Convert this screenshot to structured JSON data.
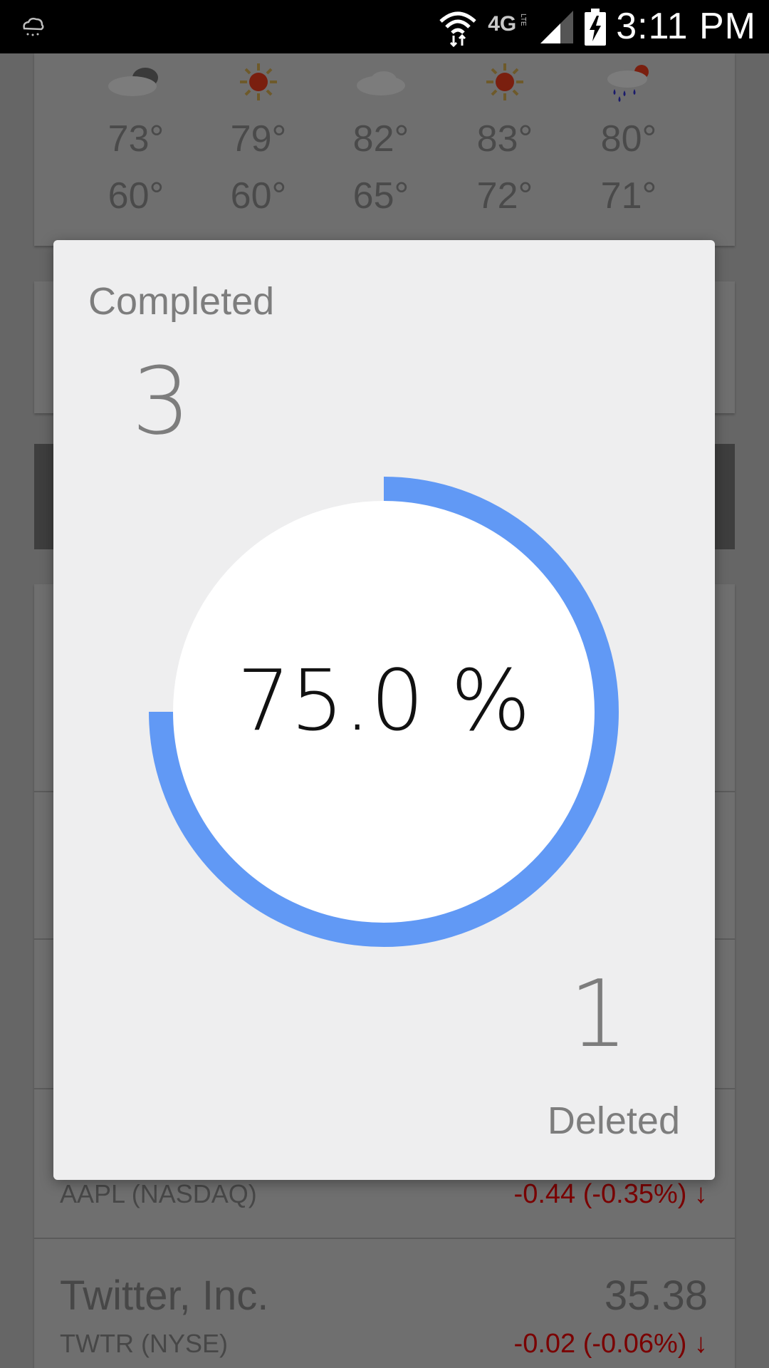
{
  "status_bar": {
    "time": "3:11 PM",
    "network": "4G",
    "icons": [
      "weather-notification-icon",
      "wifi-icon",
      "lte-icon",
      "cell-signal-icon",
      "battery-charging-icon"
    ]
  },
  "background": {
    "forecast": [
      {
        "icon": "partly-cloudy-icon",
        "high": "73°",
        "low": "60°"
      },
      {
        "icon": "sunny-icon",
        "high": "79°",
        "low": "60°"
      },
      {
        "icon": "cloudy-icon",
        "high": "82°",
        "low": "65°"
      },
      {
        "icon": "sunny-icon",
        "high": "83°",
        "low": "72°"
      },
      {
        "icon": "rain-sun-icon",
        "high": "80°",
        "low": "71°"
      }
    ],
    "stocks": [
      {
        "ticker": "AAPL (NASDAQ)",
        "change": "-0.44 (-0.35%) ↓"
      },
      {
        "name": "Twitter, Inc.",
        "price": "35.38",
        "ticker": "TWTR (NYSE)",
        "change": "-0.02 (-0.06%) ↓"
      }
    ]
  },
  "dialog": {
    "completed_label": "Completed",
    "completed_count": "3",
    "deleted_label": "Deleted",
    "deleted_count": "1",
    "progress_text": "75.0 %",
    "progress_fraction": 0.75,
    "accent_color": "#6199f5"
  }
}
